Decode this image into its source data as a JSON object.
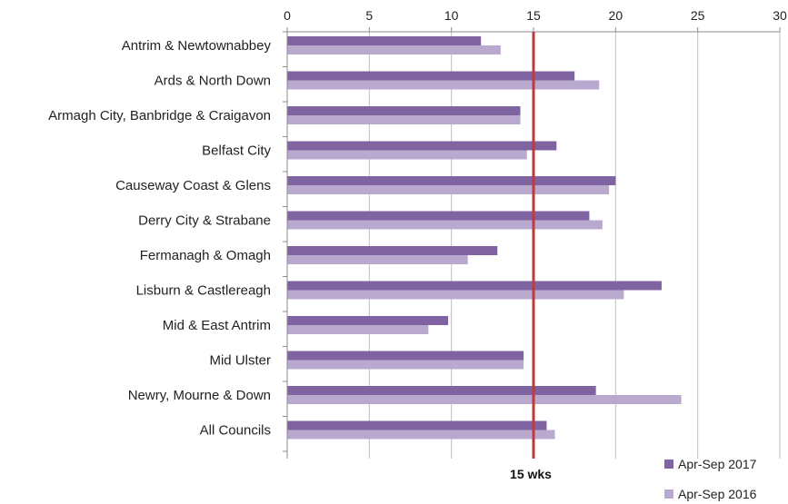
{
  "chart_data": {
    "type": "bar",
    "orientation": "horizontal",
    "categories": [
      "Antrim & Newtownabbey",
      "Ards & North Down",
      "Armagh City, Banbridge & Craigavon",
      "Belfast City",
      "Causeway Coast & Glens",
      "Derry City & Strabane",
      "Fermanagh & Omagh",
      "Lisburn & Castlereagh",
      "Mid & East Antrim",
      "Mid Ulster",
      "Newry, Mourne & Down",
      "All Councils"
    ],
    "series": [
      {
        "name": "Apr-Sep 2017",
        "color": "#8064a2",
        "values": [
          11.8,
          17.5,
          14.2,
          16.4,
          20.0,
          18.4,
          12.8,
          22.8,
          9.8,
          14.4,
          18.8,
          15.8
        ]
      },
      {
        "name": "Apr-Sep 2016",
        "color": "#b9a9cf",
        "values": [
          13.0,
          19.0,
          14.2,
          14.6,
          19.6,
          19.2,
          11.0,
          20.5,
          8.6,
          14.4,
          24.0,
          16.3
        ]
      }
    ],
    "xlim": [
      0,
      30
    ],
    "x_ticks": [
      0,
      5,
      10,
      15,
      20,
      25,
      30
    ],
    "x_axis_position": "top",
    "grid": true,
    "reference_line": {
      "value": 15,
      "label": "15 wks",
      "color": "#c0393b"
    },
    "legend_position": "bottom-right",
    "title": "",
    "xlabel": "",
    "ylabel": ""
  }
}
